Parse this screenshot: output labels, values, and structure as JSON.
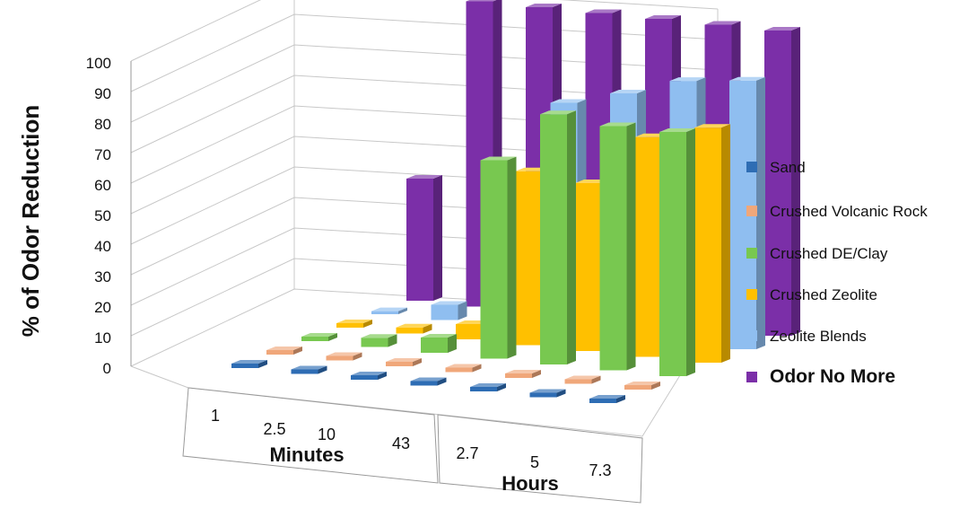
{
  "chart_data": {
    "type": "bar",
    "subtype": "3d-clustered-depth",
    "ylabel": "% of Odor Reduction",
    "ylim": [
      0,
      100
    ],
    "yticks": [
      "0",
      "10",
      "20",
      "30",
      "40",
      "50",
      "60",
      "70",
      "80",
      "90",
      "100"
    ],
    "grid": true,
    "legend_position": "right",
    "categories": [
      "1",
      "2.5",
      "10",
      "43",
      "2.7",
      "5",
      "7.3"
    ],
    "category_groups": [
      {
        "label": "Minutes",
        "categories": [
          "1",
          "2.5",
          "10",
          "43"
        ]
      },
      {
        "label": "Hours",
        "categories": [
          "2.7",
          "5",
          "7.3"
        ]
      }
    ],
    "series": [
      {
        "name": "Sand",
        "color": "#2e6db4",
        "values": [
          0,
          0,
          0,
          0,
          0,
          0,
          0
        ]
      },
      {
        "name": "Crushed Volcanic Rock",
        "color": "#f0a77a",
        "values": [
          0,
          0,
          0,
          0,
          0,
          0,
          0
        ]
      },
      {
        "name": "Crushed DE/Clay",
        "color": "#78c850",
        "values": [
          0,
          3,
          5,
          65,
          82,
          80,
          80
        ]
      },
      {
        "name": "Crushed Zeolite",
        "color": "#ffc000",
        "values": [
          0,
          2,
          5,
          57,
          55,
          72,
          77
        ]
      },
      {
        "name": "Zeolite Blends",
        "color": "#8fbef0",
        "values": [
          1,
          5,
          7,
          75,
          80,
          86,
          88
        ]
      },
      {
        "name": "Odor No More",
        "color": "#7b2fa8",
        "values": [
          40,
          100,
          100,
          100,
          100,
          100,
          100
        ]
      }
    ]
  }
}
